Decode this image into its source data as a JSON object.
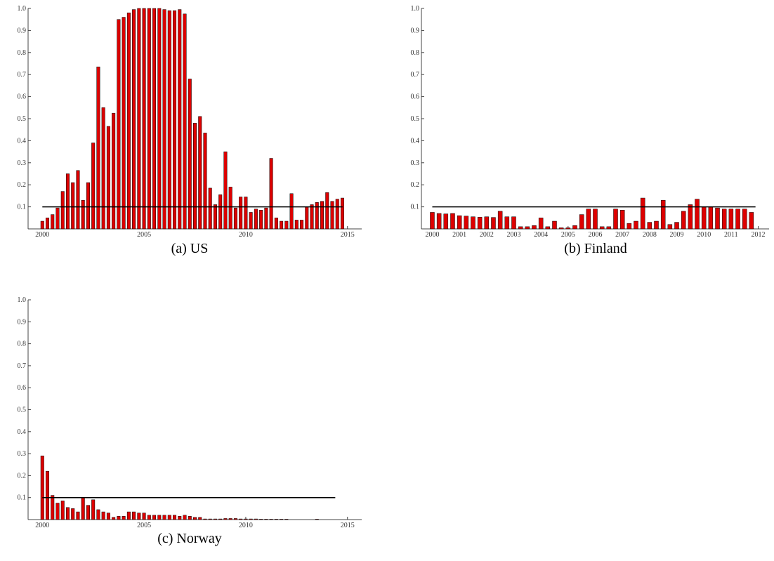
{
  "chart_data": [
    {
      "type": "bar",
      "caption": "(a) US",
      "color": "#dd0000",
      "x": [
        2000,
        2000.25,
        2000.5,
        2000.75,
        2001,
        2001.25,
        2001.5,
        2001.75,
        2002,
        2002.25,
        2002.5,
        2002.75,
        2003,
        2003.25,
        2003.5,
        2003.75,
        2004,
        2004.25,
        2004.5,
        2004.75,
        2005,
        2005.25,
        2005.5,
        2005.75,
        2006,
        2006.25,
        2006.5,
        2006.75,
        2007,
        2007.25,
        2007.5,
        2007.75,
        2008,
        2008.25,
        2008.5,
        2008.75,
        2009,
        2009.25,
        2009.5,
        2009.75,
        2010,
        2010.25,
        2010.5,
        2010.75,
        2011,
        2011.25,
        2011.5,
        2011.75,
        2012,
        2012.25,
        2012.5,
        2012.75,
        2013,
        2013.25,
        2013.5,
        2013.75,
        2014,
        2014.25,
        2014.5,
        2014.75
      ],
      "values": [
        0.035,
        0.05,
        0.065,
        0.095,
        0.17,
        0.25,
        0.21,
        0.265,
        0.13,
        0.21,
        0.39,
        0.735,
        0.55,
        0.465,
        0.525,
        0.95,
        0.96,
        0.98,
        0.995,
        1.0,
        1.0,
        1.0,
        1.0,
        1.0,
        0.995,
        0.99,
        0.99,
        0.995,
        0.975,
        0.68,
        0.48,
        0.51,
        0.435,
        0.185,
        0.11,
        0.155,
        0.35,
        0.19,
        0.095,
        0.145,
        0.145,
        0.075,
        0.09,
        0.085,
        0.095,
        0.32,
        0.05,
        0.035,
        0.035,
        0.16,
        0.04,
        0.04,
        0.1,
        0.11,
        0.12,
        0.125,
        0.165,
        0.125,
        0.135,
        0.14
      ],
      "hline": {
        "y": 0.1,
        "x_range": [
          2000,
          2014.76
        ]
      },
      "xlim": [
        1999.3,
        2015.7
      ],
      "xticks": [
        2000,
        2005,
        2010,
        2015
      ],
      "ylim": [
        0,
        1
      ],
      "yticks": [
        0.1,
        0.2,
        0.3,
        0.4,
        0.5,
        0.6,
        0.7,
        0.8,
        0.9,
        {
          "value": 1,
          "label": "1.0"
        }
      ]
    },
    {
      "type": "bar",
      "caption": "(b) Finland",
      "color": "#dd0000",
      "x": [
        2000,
        2000.25,
        2000.5,
        2000.75,
        2001,
        2001.25,
        2001.5,
        2001.75,
        2002,
        2002.25,
        2002.5,
        2002.75,
        2003,
        2003.25,
        2003.5,
        2003.75,
        2004,
        2004.25,
        2004.5,
        2004.75,
        2005,
        2005.25,
        2005.5,
        2005.75,
        2006,
        2006.25,
        2006.5,
        2006.75,
        2007,
        2007.25,
        2007.5,
        2007.75,
        2008,
        2008.25,
        2008.5,
        2008.75,
        2009,
        2009.25,
        2009.5,
        2009.75,
        2010,
        2010.25,
        2010.5,
        2010.75,
        2011,
        2011.25,
        2011.5,
        2011.75
      ],
      "values": [
        0.075,
        0.07,
        0.068,
        0.07,
        0.06,
        0.058,
        0.055,
        0.053,
        0.055,
        0.052,
        0.08,
        0.055,
        0.055,
        0.01,
        0.01,
        0.015,
        0.05,
        0.01,
        0.035,
        0.005,
        0.005,
        0.015,
        0.065,
        0.09,
        0.09,
        0.01,
        0.01,
        0.09,
        0.085,
        0.025,
        0.035,
        0.14,
        0.03,
        0.035,
        0.13,
        0.02,
        0.03,
        0.08,
        0.11,
        0.135,
        0.1,
        0.1,
        0.095,
        0.09,
        0.09,
        0.09,
        0.09,
        0.075
      ],
      "hline": {
        "y": 0.1,
        "x_range": [
          2000,
          2011.9
        ]
      },
      "xlim": [
        1999.6,
        2012.4
      ],
      "xticks": [
        2000,
        2001,
        2002,
        2003,
        2004,
        2005,
        2006,
        2007,
        2008,
        2009,
        2010,
        2011,
        2012
      ],
      "ylim": [
        0,
        1
      ],
      "yticks": [
        0.1,
        0.2,
        0.3,
        0.4,
        0.5,
        0.6,
        0.7,
        0.8,
        0.9,
        {
          "value": 1,
          "label": "1.0"
        }
      ]
    },
    {
      "type": "bar",
      "caption": "(c) Norway",
      "color": "#dd0000",
      "x": [
        2000,
        2000.25,
        2000.5,
        2000.75,
        2001,
        2001.25,
        2001.5,
        2001.75,
        2002,
        2002.25,
        2002.5,
        2002.75,
        2003,
        2003.25,
        2003.5,
        2003.75,
        2004,
        2004.25,
        2004.5,
        2004.75,
        2005,
        2005.25,
        2005.5,
        2005.75,
        2006,
        2006.25,
        2006.5,
        2006.75,
        2007,
        2007.25,
        2007.5,
        2007.75,
        2008,
        2008.25,
        2008.5,
        2008.75,
        2009,
        2009.25,
        2009.5,
        2009.75,
        2010,
        2010.25,
        2010.5,
        2010.75,
        2011,
        2011.25,
        2011.5,
        2011.75,
        2012,
        2013.5
      ],
      "values": [
        0.29,
        0.22,
        0.11,
        0.075,
        0.085,
        0.055,
        0.05,
        0.035,
        0.1,
        0.065,
        0.09,
        0.045,
        0.035,
        0.03,
        0.01,
        0.015,
        0.015,
        0.035,
        0.035,
        0.03,
        0.03,
        0.02,
        0.02,
        0.02,
        0.02,
        0.02,
        0.02,
        0.015,
        0.02,
        0.015,
        0.01,
        0.01,
        0.003,
        0.003,
        0.003,
        0.003,
        0.005,
        0.005,
        0.005,
        0.003,
        0.003,
        0.003,
        0.003,
        0.002,
        0.002,
        0.002,
        0.002,
        0.002,
        0.002,
        0.002
      ],
      "hline": {
        "y": 0.1,
        "x_range": [
          2000,
          2014.4
        ]
      },
      "xlim": [
        1999.3,
        2015.7
      ],
      "xticks": [
        2000,
        2005,
        2010,
        2015
      ],
      "ylim": [
        0,
        1
      ],
      "yticks": [
        0.1,
        0.2,
        0.3,
        0.4,
        0.5,
        0.6,
        0.7,
        0.8,
        0.9,
        {
          "value": 1,
          "label": "1.0"
        }
      ]
    }
  ]
}
